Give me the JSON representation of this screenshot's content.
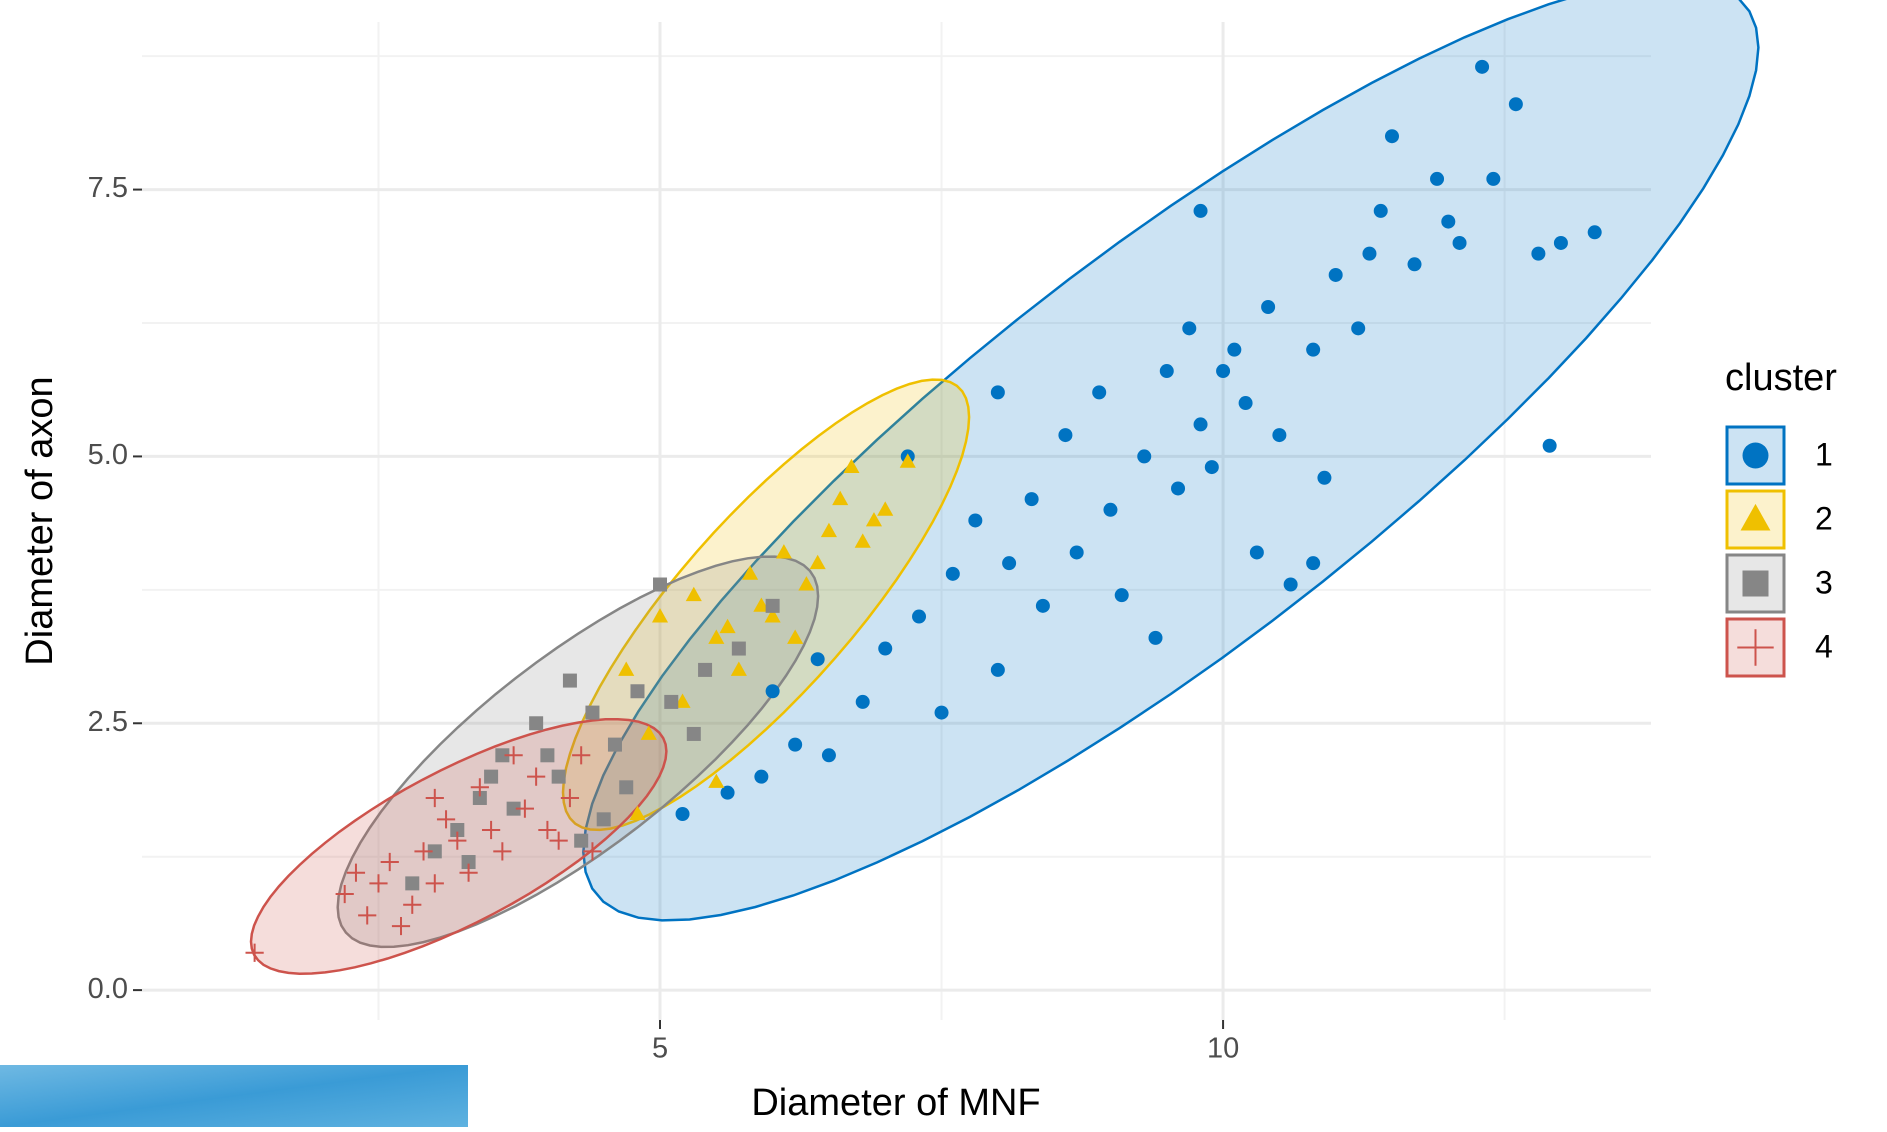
{
  "chart_data": {
    "type": "scatter",
    "x_label": "Diameter of MNF",
    "y_label": "Diameter of axon",
    "legend_title": "cluster",
    "legend_position": "right",
    "grid": true,
    "xlim": [
      0.4,
      13.8
    ],
    "ylim": [
      -0.28,
      9.07
    ],
    "xticks": [
      5,
      10
    ],
    "yticks": [
      {
        "value": 0,
        "label": "0.0"
      },
      2.5,
      {
        "value": 5,
        "label": "5.0"
      },
      7.5
    ],
    "ellipses": true,
    "series": [
      {
        "name": "1",
        "color": "#0073C2",
        "shape": "circle",
        "x": [
          5.2,
          5.6,
          5.9,
          6.2,
          6.5,
          6.8,
          7.0,
          7.3,
          7.5,
          7.6,
          7.8,
          8.0,
          8.1,
          8.3,
          8.4,
          8.6,
          8.7,
          8.9,
          9.0,
          9.1,
          9.3,
          9.4,
          9.5,
          9.6,
          9.7,
          9.8,
          9.9,
          10.0,
          10.1,
          10.2,
          10.3,
          10.4,
          10.5,
          10.6,
          10.8,
          10.9,
          11.0,
          11.2,
          11.4,
          11.5,
          11.7,
          11.9,
          12.0,
          12.3,
          12.4,
          12.6,
          12.8,
          13.0,
          13.3,
          12.9,
          9.8,
          7.2,
          8.0,
          6.0,
          6.4,
          10.8,
          12.1,
          11.3
        ],
        "y": [
          1.65,
          1.85,
          2.0,
          2.3,
          2.2,
          2.7,
          3.2,
          3.5,
          2.6,
          3.9,
          4.4,
          3.0,
          4.0,
          4.6,
          3.6,
          5.2,
          4.1,
          5.6,
          4.5,
          3.7,
          5.0,
          3.3,
          5.8,
          4.7,
          6.2,
          5.3,
          4.9,
          5.8,
          6.0,
          5.5,
          4.1,
          6.4,
          5.2,
          3.8,
          6.0,
          4.8,
          6.7,
          6.2,
          7.3,
          8.0,
          6.8,
          7.6,
          7.2,
          8.65,
          7.6,
          8.3,
          6.9,
          7.0,
          7.1,
          5.1,
          7.3,
          5.0,
          5.6,
          2.8,
          3.1,
          4.0,
          7.0,
          6.9
        ]
      },
      {
        "name": "2",
        "color": "#EFC000",
        "shape": "triangle",
        "x": [
          4.8,
          5.5,
          4.7,
          5.0,
          5.3,
          5.5,
          5.8,
          5.9,
          6.1,
          6.3,
          6.5,
          6.6,
          6.7,
          6.8,
          7.0,
          7.2,
          6.2,
          5.7,
          5.2,
          4.9,
          6.0,
          6.4,
          5.6,
          6.9
        ],
        "y": [
          1.65,
          1.95,
          3.0,
          3.5,
          3.7,
          3.3,
          3.9,
          3.6,
          4.1,
          3.8,
          4.3,
          4.6,
          4.9,
          4.2,
          4.5,
          4.95,
          3.3,
          3.0,
          2.7,
          2.4,
          3.5,
          4.0,
          3.4,
          4.4
        ]
      },
      {
        "name": "3",
        "color": "#868686",
        "shape": "square",
        "x": [
          5.0,
          4.2,
          3.6,
          3.9,
          4.1,
          4.4,
          4.6,
          4.8,
          5.1,
          5.4,
          5.7,
          4.5,
          4.3,
          3.4,
          3.2,
          3.0,
          2.8,
          3.7,
          4.0,
          5.3,
          4.7,
          3.5,
          6.0,
          3.3
        ],
        "y": [
          3.8,
          2.9,
          2.2,
          2.5,
          2.0,
          2.6,
          2.3,
          2.8,
          2.7,
          3.0,
          3.2,
          1.6,
          1.4,
          1.8,
          1.5,
          1.3,
          1.0,
          1.7,
          2.2,
          2.4,
          1.9,
          2.0,
          3.6,
          1.2
        ]
      },
      {
        "name": "4",
        "color": "#CD534C",
        "shape": "plus",
        "x": [
          1.4,
          2.2,
          2.4,
          2.5,
          2.6,
          2.8,
          2.9,
          3.0,
          3.1,
          3.2,
          3.3,
          3.4,
          3.5,
          3.6,
          3.8,
          3.9,
          4.0,
          4.2,
          4.3,
          4.4,
          3.7,
          2.7,
          3.0,
          2.3,
          4.1
        ],
        "y": [
          0.35,
          0.9,
          0.7,
          1.0,
          1.2,
          0.8,
          1.3,
          1.0,
          1.6,
          1.4,
          1.1,
          1.9,
          1.5,
          1.3,
          1.7,
          2.0,
          1.5,
          1.8,
          2.2,
          1.3,
          2.2,
          0.6,
          1.8,
          1.1,
          1.4
        ]
      }
    ]
  }
}
